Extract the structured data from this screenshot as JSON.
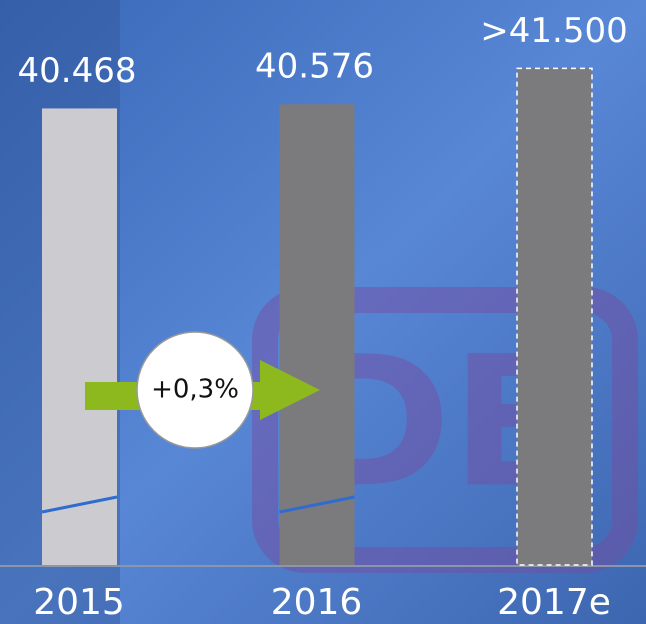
{
  "chart_data": {
    "type": "bar",
    "categories": [
      "2015",
      "2016",
      "2017e"
    ],
    "values": [
      40468,
      40576,
      41500
    ],
    "value_labels": [
      "40.468",
      "40.576",
      ">41.500"
    ],
    "colors": [
      "#cbcbd0",
      "#7b7b7d",
      "#7b7b7d"
    ],
    "ylim": [
      28700,
      42000
    ],
    "annotation": "+0,3%"
  }
}
